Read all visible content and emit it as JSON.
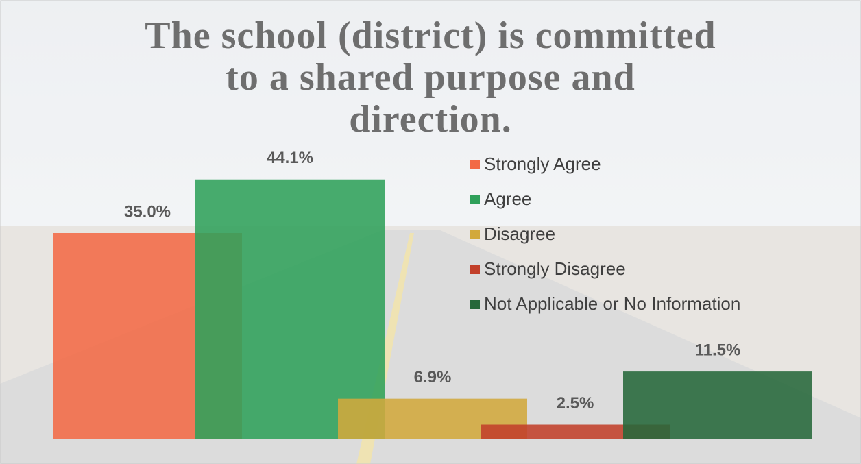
{
  "chart_data": {
    "type": "bar",
    "title": "The school (district) is committed\nto a shared purpose and\ndirection.",
    "series": [
      {
        "name": "Strongly Agree",
        "color": "#f26a45",
        "values": [
          35.0
        ],
        "value_labels": [
          "35.0%"
        ]
      },
      {
        "name": "Agree",
        "color": "#2fa05a",
        "values": [
          44.1
        ],
        "value_labels": [
          "44.1%"
        ]
      },
      {
        "name": "Disagree",
        "color": "#d2a93c",
        "values": [
          6.9
        ],
        "value_labels": [
          "6.9%"
        ]
      },
      {
        "name": "Strongly Disagree",
        "color": "#c2402a",
        "values": [
          2.5
        ],
        "value_labels": [
          "2.5%"
        ]
      },
      {
        "name": "Not Applicable or No Information",
        "color": "#26683a",
        "values": [
          11.5
        ],
        "value_labels": [
          "11.5%"
        ]
      }
    ],
    "legend": "right"
  }
}
